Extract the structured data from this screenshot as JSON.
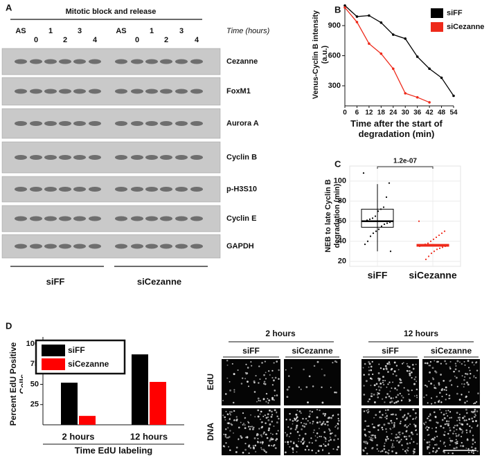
{
  "panel_labels": [
    "A",
    "B",
    "C",
    "D"
  ],
  "blot": {
    "title": "Mitotic block and release",
    "time_label": "Time (hours)",
    "lanes": [
      "AS",
      "0",
      "1",
      "2",
      "3",
      "4",
      "AS",
      "0",
      "1",
      "2",
      "3",
      "4"
    ],
    "proteins": [
      "Cezanne",
      "FoxM1",
      "Aurora A",
      "Cyclin B",
      "p-H3S10",
      "Cyclin E",
      "GAPDH"
    ],
    "groups": [
      "siFF",
      "siCezanne"
    ]
  },
  "chart_data": [
    {
      "type": "line",
      "y_label": "Venus-Cyclin B intensity (a.u.)",
      "x_label": "Time after the start of degradation (min)",
      "x": [
        0,
        6,
        12,
        18,
        24,
        30,
        36,
        42,
        48,
        54
      ],
      "xlim": [
        0,
        54
      ],
      "xticks": [
        0,
        6,
        12,
        18,
        24,
        30,
        36,
        42,
        48,
        54
      ],
      "ylim": [
        100,
        1100
      ],
      "yticks": [
        300,
        600,
        900
      ],
      "series": [
        {
          "name": "siFF",
          "color": "#000000",
          "values": [
            1100,
            990,
            1000,
            930,
            810,
            770,
            590,
            470,
            380,
            200
          ]
        },
        {
          "name": "siCezanne",
          "color": "#ee2a1b",
          "values": [
            1080,
            935,
            720,
            620,
            470,
            225,
            185,
            135,
            null,
            null
          ]
        }
      ]
    },
    {
      "type": "box",
      "y_label": "NEB to late Cyclin B degradation (min)",
      "annotation": "1.2e-07",
      "categories": [
        "siFF",
        "siCezanne"
      ],
      "ylim": [
        15,
        115
      ],
      "yticks": [
        20,
        40,
        60,
        80,
        100
      ],
      "grid": true,
      "boxes": [
        {
          "color": "#000000",
          "whisker_low": 30,
          "q1": 54,
          "median": 60,
          "q3": 72,
          "whisker_high": 97,
          "points": [
            108,
            98,
            84,
            74,
            72,
            70,
            65,
            63,
            62,
            61,
            60,
            59,
            58,
            57,
            55,
            52,
            50,
            48,
            45,
            40,
            37,
            30
          ]
        },
        {
          "color": "#ee2a1b",
          "whisker_low": 35,
          "q1": 35,
          "median": 36,
          "q3": 37,
          "whisker_high": 37,
          "points": [
            60,
            50,
            48,
            46,
            44,
            42,
            40,
            38,
            37,
            36,
            35,
            35,
            34,
            33,
            32,
            30,
            28,
            25,
            22
          ]
        }
      ]
    },
    {
      "type": "bar",
      "y_label": "Percent EdU Positive Cells",
      "x_label": "Time EdU labeling",
      "categories": [
        "2 hours",
        "12 hours"
      ],
      "ylim": [
        0,
        100
      ],
      "yticks": [
        25,
        50,
        75,
        100
      ],
      "series": [
        {
          "name": "siFF",
          "color": "#000000",
          "values": [
            52,
            87
          ]
        },
        {
          "name": "siCezanne",
          "color": "#ff0000",
          "values": [
            11,
            53
          ]
        }
      ]
    }
  ],
  "micrographs": {
    "times": [
      "2 hours",
      "12 hours"
    ],
    "conditions": [
      "siFF",
      "siCezanne"
    ],
    "stains": [
      "EdU",
      "DNA"
    ]
  }
}
